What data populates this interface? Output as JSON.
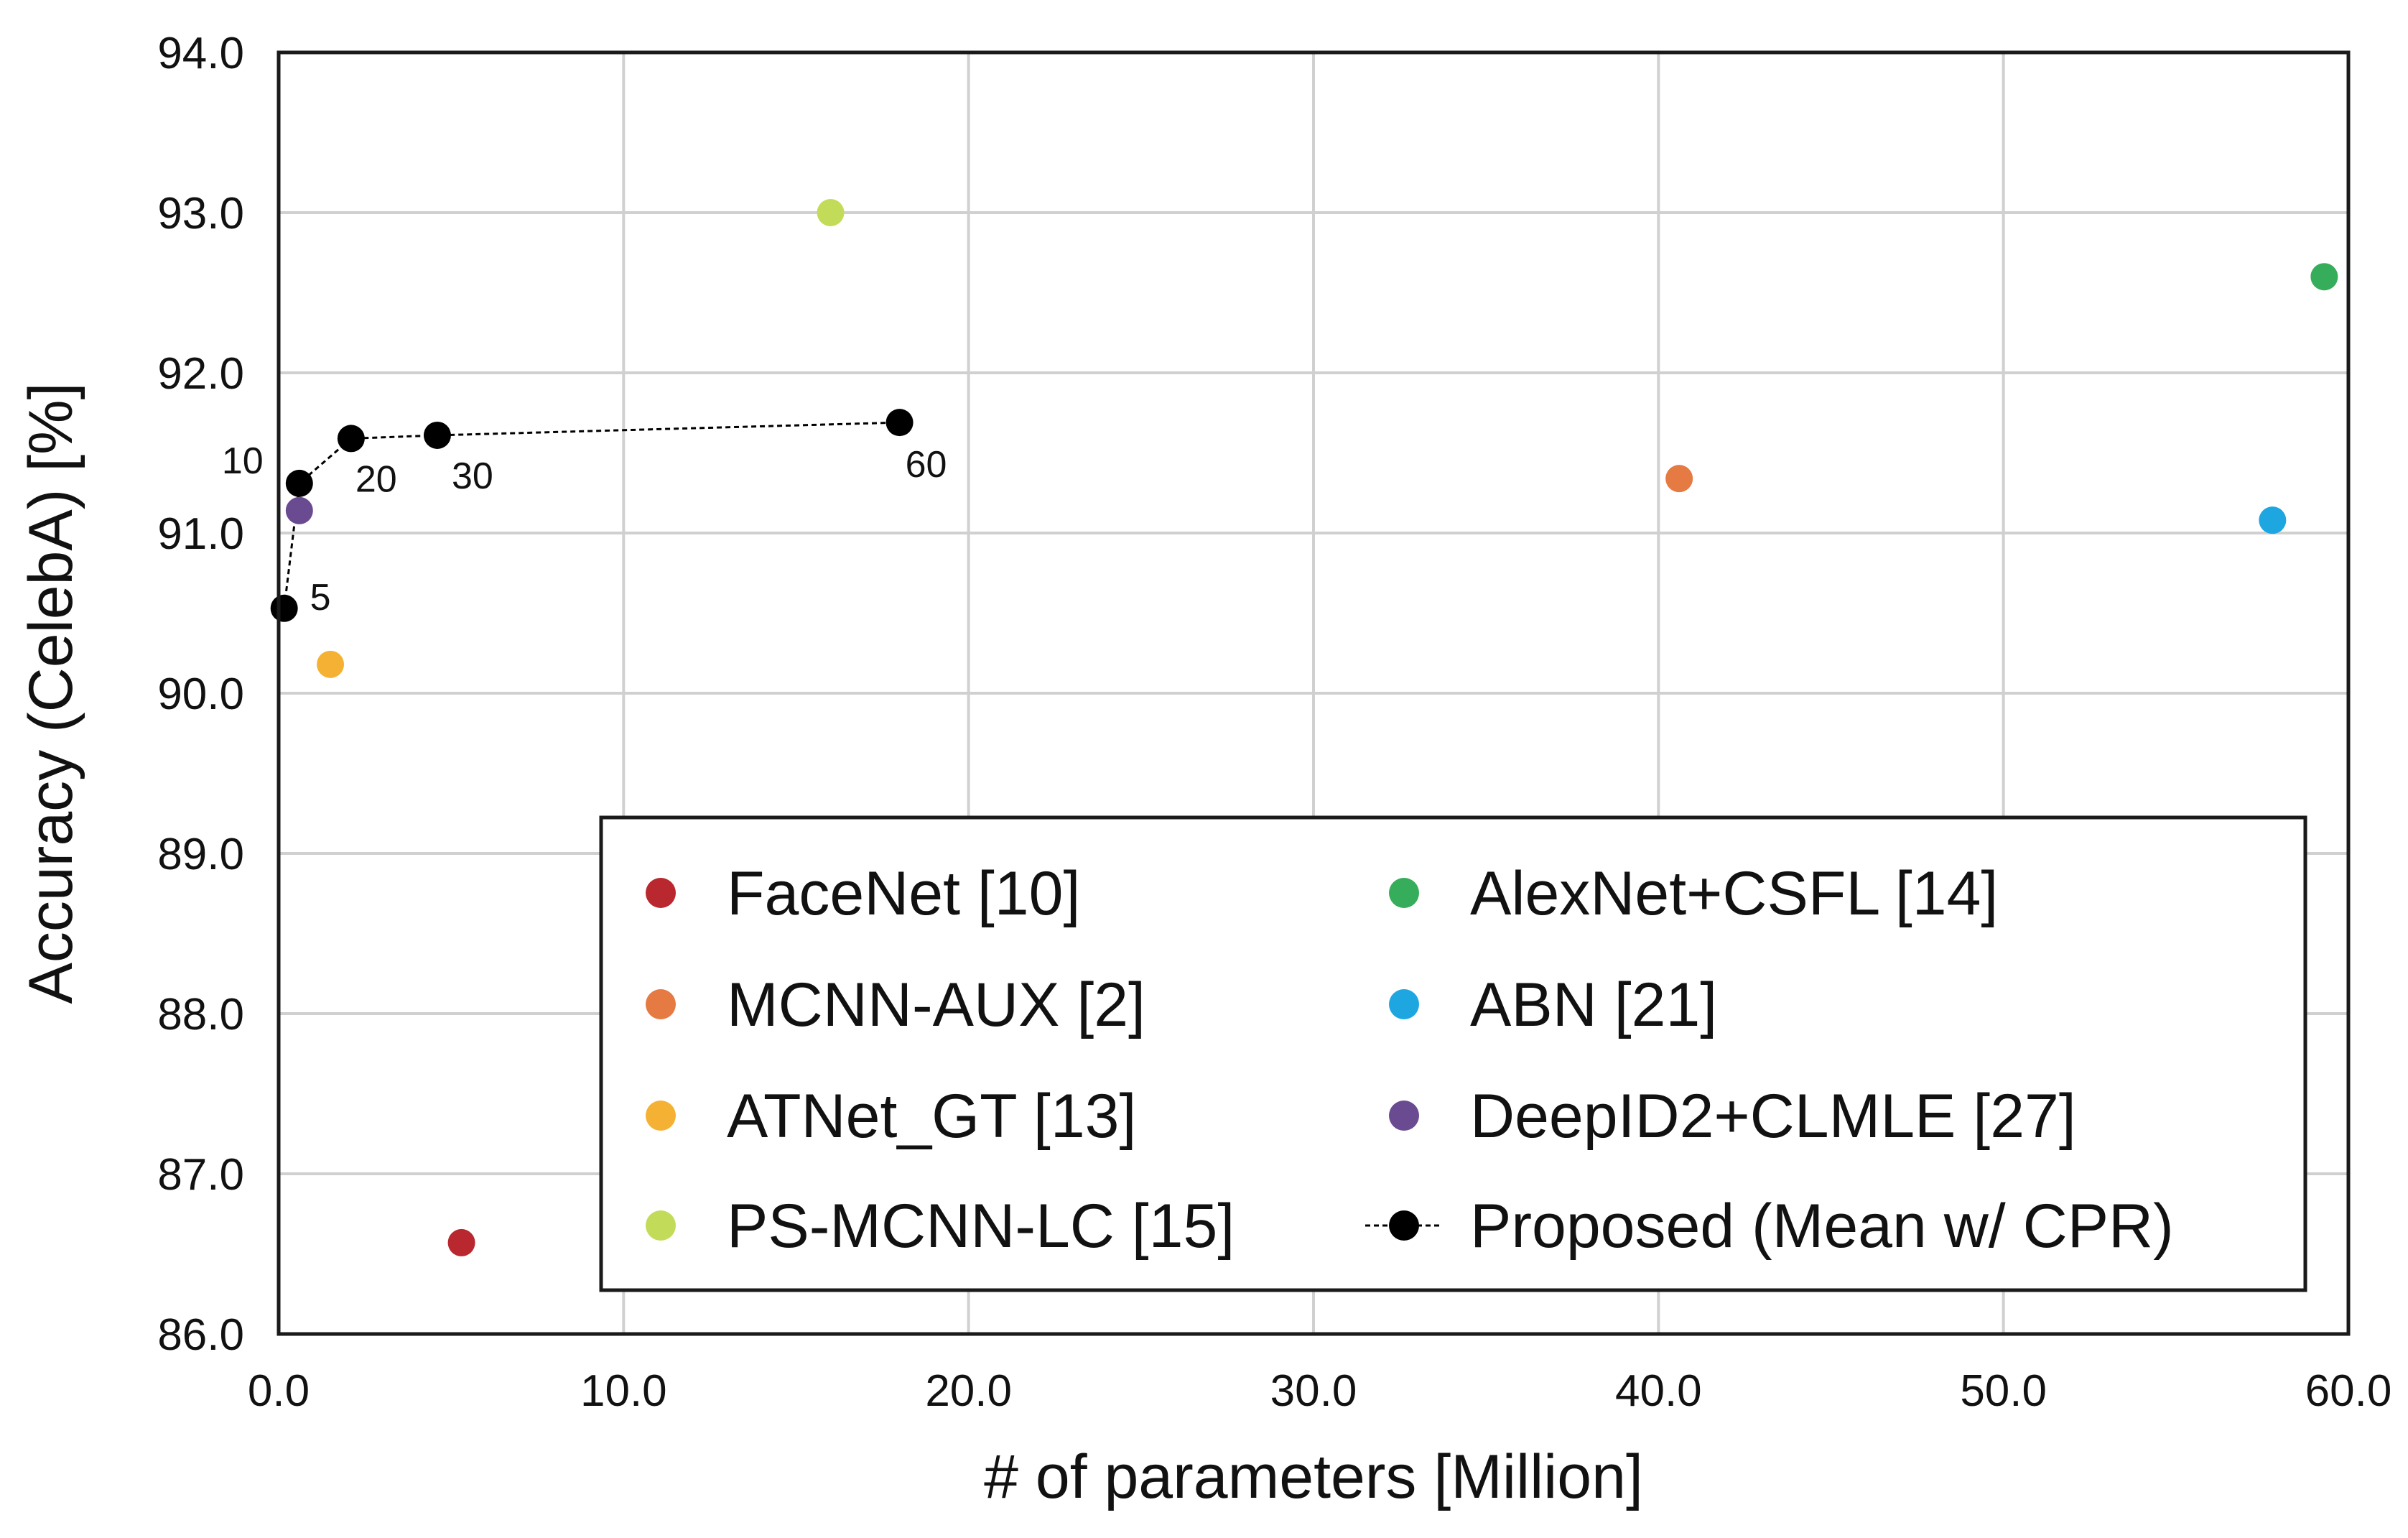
{
  "chart_data": {
    "type": "scatter",
    "title": "",
    "xlabel": "# of parameters [Million]",
    "ylabel": "Accuracy (CelebA) [%]",
    "xlim": [
      0.0,
      60.0
    ],
    "ylim": [
      86.0,
      94.0
    ],
    "x_ticks": [
      0,
      10,
      20,
      30,
      40,
      50,
      60
    ],
    "x_tick_labels": [
      "0.0",
      "10.0",
      "20.0",
      "30.0",
      "40.0",
      "50.0",
      "60.0"
    ],
    "y_ticks": [
      86,
      87,
      88,
      89,
      90,
      91,
      92,
      93,
      94
    ],
    "y_tick_labels": [
      "86.0",
      "87.0",
      "88.0",
      "89.0",
      "90.0",
      "91.0",
      "92.0",
      "93.0",
      "94.0"
    ],
    "grid": true,
    "legend_position": "lower-right",
    "series": [
      {
        "name": "FaceNet [10]",
        "color": "#b8282e",
        "x": [
          5.3
        ],
        "y": [
          86.57
        ]
      },
      {
        "name": "MCNN-AUX [2]",
        "color": "#e57a43",
        "x": [
          40.6
        ],
        "y": [
          91.34
        ]
      },
      {
        "name": "ATNet_GT [13]",
        "color": "#f5b133",
        "x": [
          1.5
        ],
        "y": [
          90.18
        ]
      },
      {
        "name": "PS-MCNN-LC [15]",
        "color": "#c2dc5a",
        "x": [
          16.0
        ],
        "y": [
          93.0
        ]
      },
      {
        "name": "AlexNet+CSFL [14]",
        "color": "#36ad5a",
        "x": [
          59.3
        ],
        "y": [
          92.6
        ]
      },
      {
        "name": "ABN [21]",
        "color": "#1ea6e0",
        "x": [
          57.8
        ],
        "y": [
          91.08
        ]
      },
      {
        "name": "DeepID2+CLMLE [27]",
        "color": "#6a4a90",
        "x": [
          0.6
        ],
        "y": [
          91.14
        ]
      },
      {
        "name": "Proposed (Mean w/ CPR)",
        "color": "#000000",
        "line": "dashed",
        "x": [
          0.16,
          0.6,
          2.1,
          4.6,
          18.0
        ],
        "y": [
          90.53,
          91.31,
          91.59,
          91.61,
          91.69
        ],
        "point_labels": [
          "5",
          "10",
          "20",
          "30",
          "60"
        ]
      }
    ]
  }
}
